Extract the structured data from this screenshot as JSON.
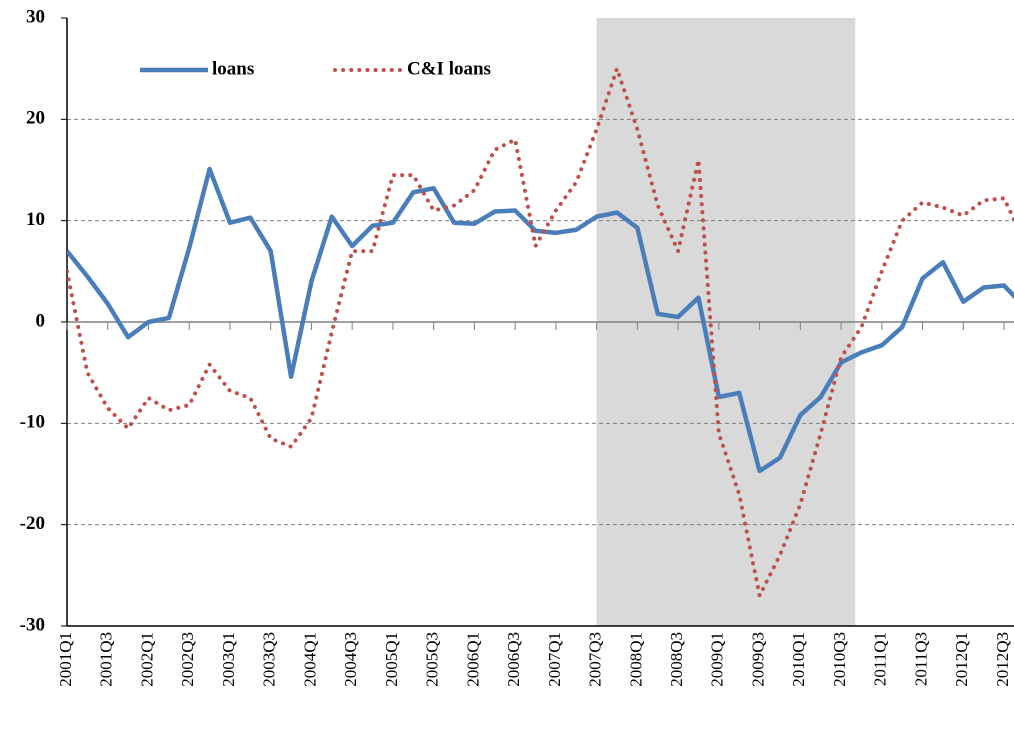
{
  "chart_data": {
    "type": "line",
    "categories": [
      "2001Q1",
      null,
      "2001Q3",
      null,
      "2002Q1",
      null,
      "2002Q3",
      null,
      "2003Q1",
      null,
      "2003Q3",
      null,
      "2004Q1",
      null,
      "2004Q3",
      null,
      "2005Q1",
      null,
      "2005Q3",
      null,
      "2006Q1",
      null,
      "2006Q3",
      null,
      "2007Q1",
      null,
      "2007Q3",
      null,
      "2008Q1",
      null,
      "2008Q3",
      null,
      "2009Q1",
      null,
      "2009Q3",
      null,
      "2010Q1",
      null,
      "2010Q3",
      null,
      "2011Q1",
      null,
      "2011Q3",
      null,
      "2012Q1",
      null,
      "2012Q3",
      null
    ],
    "series": [
      {
        "name": "loans",
        "color": "#4a7ebb",
        "dash": "solid",
        "values": [
          7,
          4.5,
          1.8,
          -1.5,
          0,
          0.4,
          7.3,
          15.1,
          9.8,
          10.3,
          7,
          -5.4,
          4,
          10.4,
          7.5,
          9.5,
          9.8,
          12.8,
          13.2,
          9.8,
          9.7,
          10.9,
          11,
          9,
          8.8,
          9.1,
          10.4,
          10.8,
          9.3,
          0.8,
          0.5,
          2.4,
          -7.4,
          -7,
          -14.7,
          -13.4,
          -9.2,
          -7.4,
          -4,
          -3,
          -2.3,
          -0.5,
          4.3,
          5.9,
          2,
          3.4,
          3.6,
          1.5
        ]
      },
      {
        "name": "C&I loans",
        "color": "#c0504d",
        "dash": "dotted",
        "values": [
          5,
          -5,
          -8.5,
          -10.5,
          -7.5,
          -8.7,
          -8.2,
          -4.2,
          -6.8,
          -7.5,
          -11.5,
          -12.3,
          -9.5,
          -1,
          7,
          7,
          14.5,
          14.5,
          11,
          11.5,
          13,
          17,
          18,
          7.5,
          11,
          13.8,
          19,
          25,
          19,
          11.5,
          7,
          16,
          -11,
          -17,
          -27,
          -23,
          -18,
          -11,
          -3.5,
          -0.5,
          5,
          10,
          11.8,
          11.3,
          10.5,
          12,
          12.2,
          8
        ]
      }
    ],
    "shade": [
      26,
      38.7
    ],
    "ylim": [
      -30,
      30
    ],
    "yticks": [
      -30,
      -20,
      -10,
      0,
      10,
      20,
      30
    ],
    "grid": true,
    "legend": "top-left"
  }
}
